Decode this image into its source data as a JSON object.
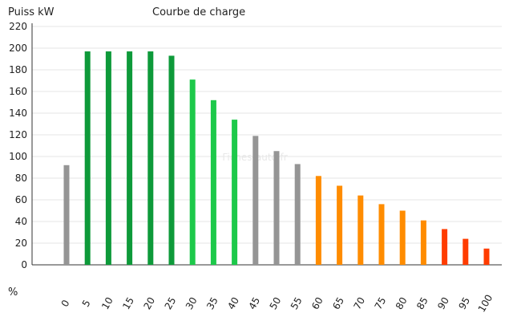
{
  "chart_data": {
    "type": "bar",
    "title": "Courbe de charge",
    "ylabel": "Puiss kW",
    "xlabel": "%",
    "watermark": "Fiches-auto.fr",
    "ylim": [
      0,
      220
    ],
    "yticks": [
      0,
      20,
      40,
      60,
      80,
      100,
      120,
      140,
      160,
      180,
      200,
      220
    ],
    "grid": "horizontal",
    "categories": [
      "0",
      "5",
      "10",
      "15",
      "20",
      "25",
      "30",
      "35",
      "40",
      "45",
      "50",
      "55",
      "60",
      "65",
      "70",
      "75",
      "80",
      "85",
      "90",
      "95",
      "100"
    ],
    "values": [
      92,
      197,
      197,
      197,
      197,
      193,
      171,
      152,
      134,
      119,
      105,
      93,
      82,
      73,
      64,
      56,
      50,
      41,
      33,
      24,
      15
    ],
    "colors": [
      "#959595",
      "#0e9a3a",
      "#0e9a3a",
      "#0e9a3a",
      "#0e9a3a",
      "#0e9a3a",
      "#1dc94a",
      "#1dc94a",
      "#1dc94a",
      "#959595",
      "#959595",
      "#959595",
      "#ff8c00",
      "#ff8c00",
      "#ff8c00",
      "#ff8c00",
      "#ff8c00",
      "#ff8c00",
      "#ff3c00",
      "#ff3c00",
      "#ff3c00"
    ]
  }
}
